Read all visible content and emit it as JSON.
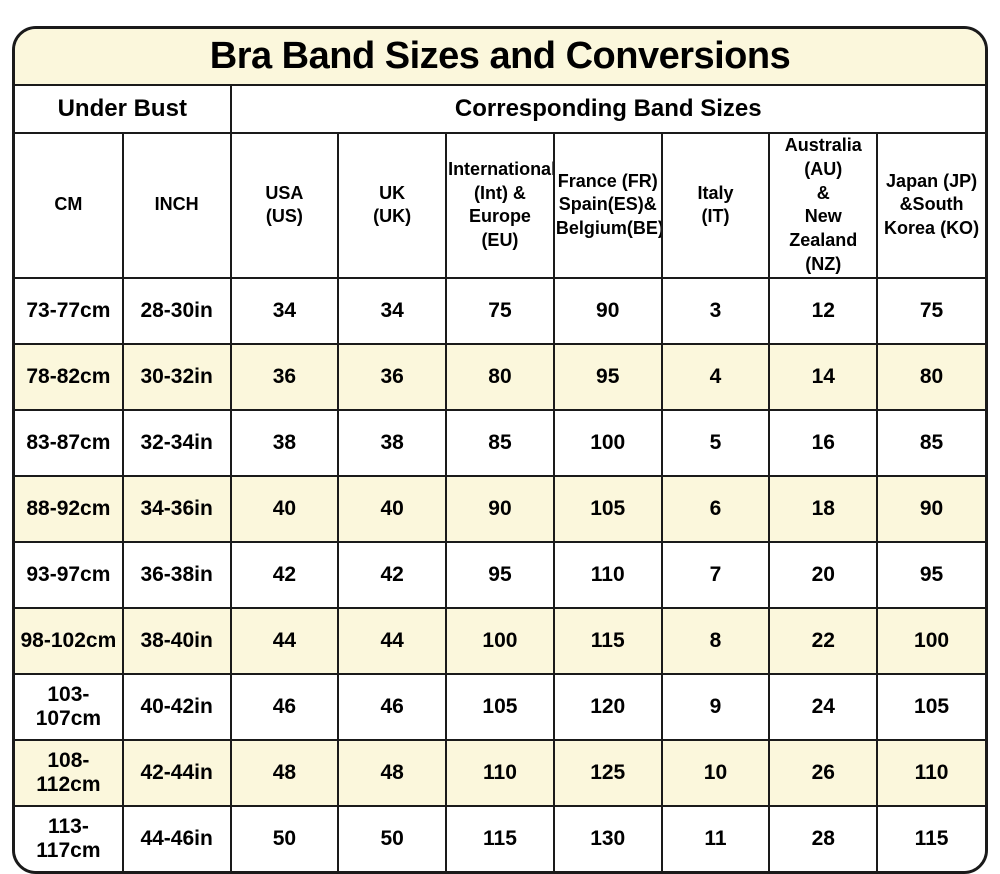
{
  "colors": {
    "stripe_cream": "#FBF7DC",
    "row_white": "#FFFFFF",
    "border": "#1A1A1A",
    "text": "#000000"
  },
  "chart_data": {
    "type": "table",
    "title": "Bra Band Sizes and Conversions",
    "column_groups": [
      {
        "label": "Under Bust",
        "span": 2
      },
      {
        "label": "Corresponding Band Sizes",
        "span": 7
      }
    ],
    "columns": [
      {
        "id": "cm",
        "label_lines": [
          "CM"
        ]
      },
      {
        "id": "inch",
        "label_lines": [
          "INCH"
        ]
      },
      {
        "id": "usa",
        "label_lines": [
          "USA",
          "(US)"
        ]
      },
      {
        "id": "uk",
        "label_lines": [
          "UK",
          "(UK)"
        ]
      },
      {
        "id": "int-eu",
        "label_lines": [
          "International",
          "(Int) &",
          "Europe (EU)"
        ]
      },
      {
        "id": "fr-es-be",
        "label_lines": [
          "France (FR)",
          "Spain(ES)&",
          "Belgium(BE)"
        ]
      },
      {
        "id": "it",
        "label_lines": [
          "Italy",
          "(IT)"
        ]
      },
      {
        "id": "au-nz",
        "label_lines": [
          "Australia (AU)",
          "&",
          "New Zealand",
          "(NZ)"
        ]
      },
      {
        "id": "jp-ko",
        "label_lines": [
          "Japan (JP)",
          "&South",
          "Korea (KO)"
        ]
      }
    ],
    "rows": [
      [
        "73-77cm",
        "28-30in",
        "34",
        "34",
        "75",
        "90",
        "3",
        "12",
        "75"
      ],
      [
        "78-82cm",
        "30-32in",
        "36",
        "36",
        "80",
        "95",
        "4",
        "14",
        "80"
      ],
      [
        "83-87cm",
        "32-34in",
        "38",
        "38",
        "85",
        "100",
        "5",
        "16",
        "85"
      ],
      [
        "88-92cm",
        "34-36in",
        "40",
        "40",
        "90",
        "105",
        "6",
        "18",
        "90"
      ],
      [
        "93-97cm",
        "36-38in",
        "42",
        "42",
        "95",
        "110",
        "7",
        "20",
        "95"
      ],
      [
        "98-102cm",
        "38-40in",
        "44",
        "44",
        "100",
        "115",
        "8",
        "22",
        "100"
      ],
      [
        "103-107cm",
        "40-42in",
        "46",
        "46",
        "105",
        "120",
        "9",
        "24",
        "105"
      ],
      [
        "108-112cm",
        "42-44in",
        "48",
        "48",
        "110",
        "125",
        "10",
        "26",
        "110"
      ],
      [
        "113-117cm",
        "44-46in",
        "50",
        "50",
        "115",
        "130",
        "11",
        "28",
        "115"
      ]
    ],
    "layout_hints": {
      "striping": "even-numbered data rows (2,4,6,8) have cream background",
      "outer_corners": "rounded",
      "all_text": "bold, centered"
    }
  }
}
